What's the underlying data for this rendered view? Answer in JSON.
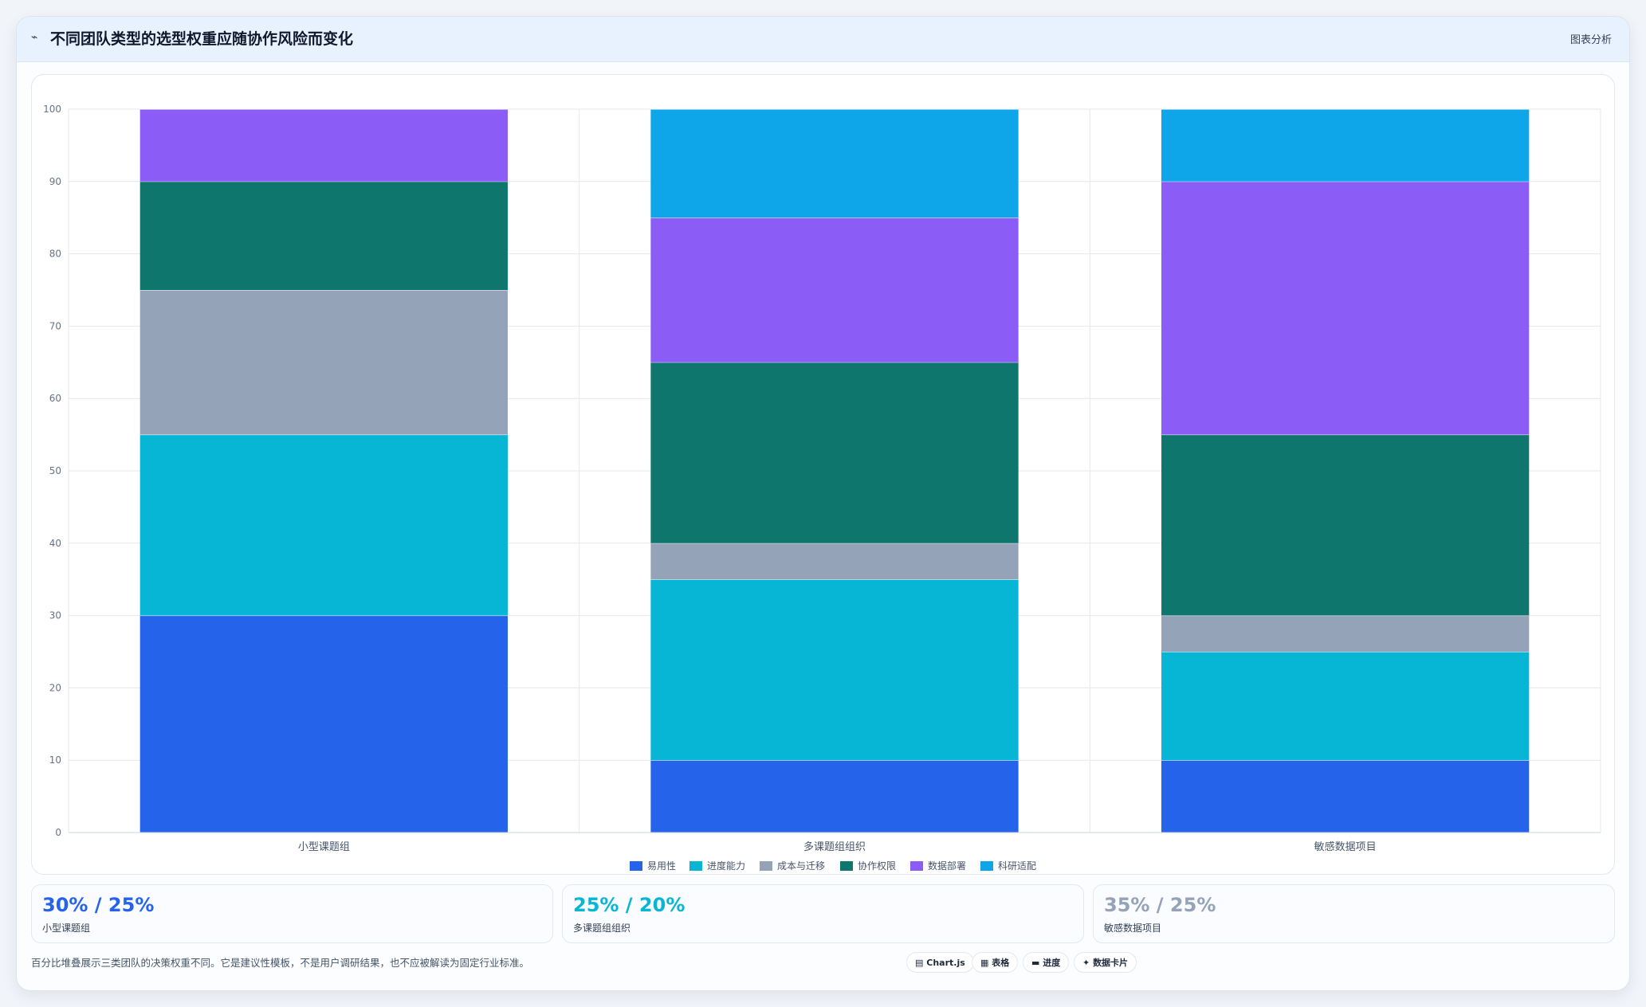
{
  "header": {
    "icon": "chart-line-icon",
    "title": "不同团队类型的选型权重应随协作风险而变化",
    "action_label": "图表分析"
  },
  "chart_data": {
    "type": "bar",
    "stacked": true,
    "categories": [
      "小型课题组",
      "多课题组组织",
      "敏感数据项目"
    ],
    "series": [
      {
        "name": "易用性",
        "color": "#2563eb",
        "values": [
          30,
          10,
          10
        ]
      },
      {
        "name": "进度能力",
        "color": "#06b6d4",
        "values": [
          25,
          25,
          15
        ]
      },
      {
        "name": "成本与迁移",
        "color": "#94a3b8",
        "values": [
          20,
          5,
          5
        ]
      },
      {
        "name": "协作权限",
        "color": "#0f766e",
        "values": [
          15,
          25,
          25
        ]
      },
      {
        "name": "数据部署",
        "color": "#8b5cf6",
        "values": [
          10,
          20,
          35
        ]
      },
      {
        "name": "科研适配",
        "color": "#0ea5e9",
        "values": [
          0,
          15,
          10
        ]
      }
    ],
    "ylim": [
      0,
      100
    ],
    "yticks": [
      0,
      10,
      20,
      30,
      40,
      50,
      60,
      70,
      80,
      90,
      100
    ],
    "grid": true,
    "legend_position": "bottom"
  },
  "stats": [
    {
      "value": "30% / 25%",
      "label": "小型课题组",
      "color": "#2563eb"
    },
    {
      "value": "25% / 20%",
      "label": "多课题组组织",
      "color": "#06b6d4"
    },
    {
      "value": "35% / 25%",
      "label": "敏感数据项目",
      "color": "#94a3b8"
    }
  ],
  "footnote": "百分比堆叠展示三类团队的决策权重不同。它是建议性模板，不是用户调研结果，也不应被解读为固定行业标准。",
  "chips": [
    {
      "icon": "chart-icon",
      "glyph": "▤",
      "label": "Chart.js"
    },
    {
      "icon": "table-icon",
      "glyph": "▦",
      "label": "表格"
    },
    {
      "icon": "progress-icon",
      "glyph": "▬",
      "label": "进度"
    },
    {
      "icon": "sparkle-icon",
      "glyph": "✦",
      "label": "数据卡片"
    }
  ]
}
